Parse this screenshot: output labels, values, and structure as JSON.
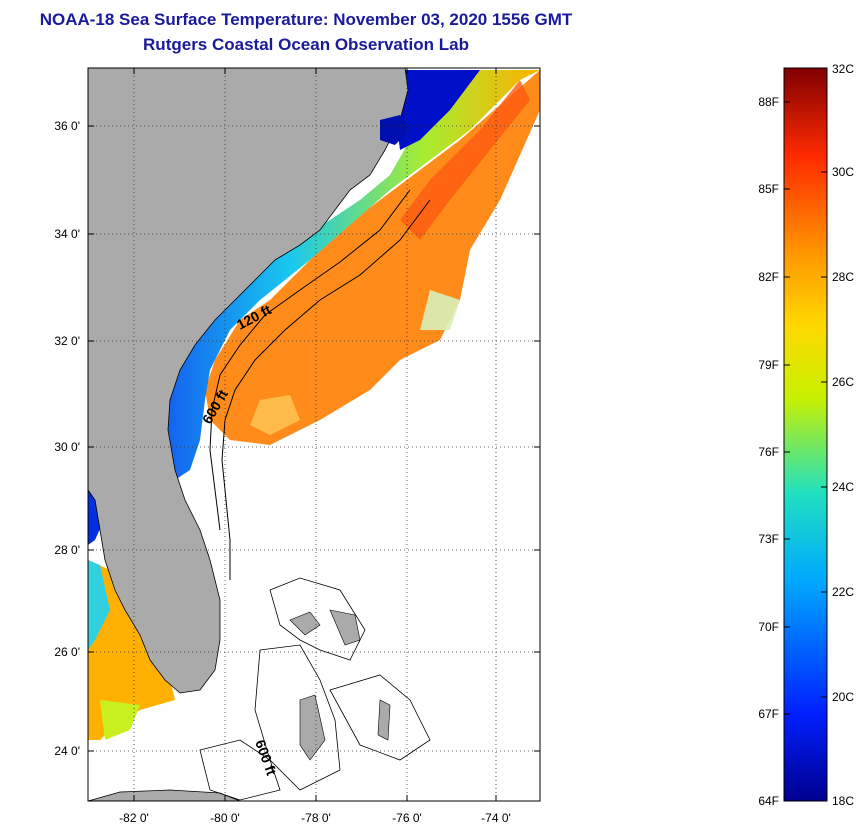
{
  "header": {
    "title": "NOAA-18 Sea Surface Temperature:  November 03, 2020 1556 GMT",
    "subtitle": "Rutgers Coastal Ocean Observation Lab"
  },
  "map": {
    "lat_ticks": [
      "36 0'",
      "34 0'",
      "32 0'",
      "30 0'",
      "28 0'",
      "26 0'",
      "24 0'"
    ],
    "lon_ticks": [
      "-82 0'",
      "-80 0'",
      "-78 0'",
      "-76 0'",
      "-74 0'"
    ],
    "contour_labels": [
      "120 ft",
      "600 ft",
      "600 ft"
    ]
  },
  "colorbar": {
    "fahrenheit": [
      "88F",
      "85F",
      "82F",
      "79F",
      "76F",
      "73F",
      "70F",
      "67F",
      "64F"
    ],
    "celsius": [
      "32C",
      "30C",
      "28C",
      "26C",
      "24C",
      "22C",
      "20C",
      "18C"
    ]
  },
  "colors": {
    "title": "#1a1a9c",
    "land": "#aaaaaa",
    "grid": "#333333"
  }
}
